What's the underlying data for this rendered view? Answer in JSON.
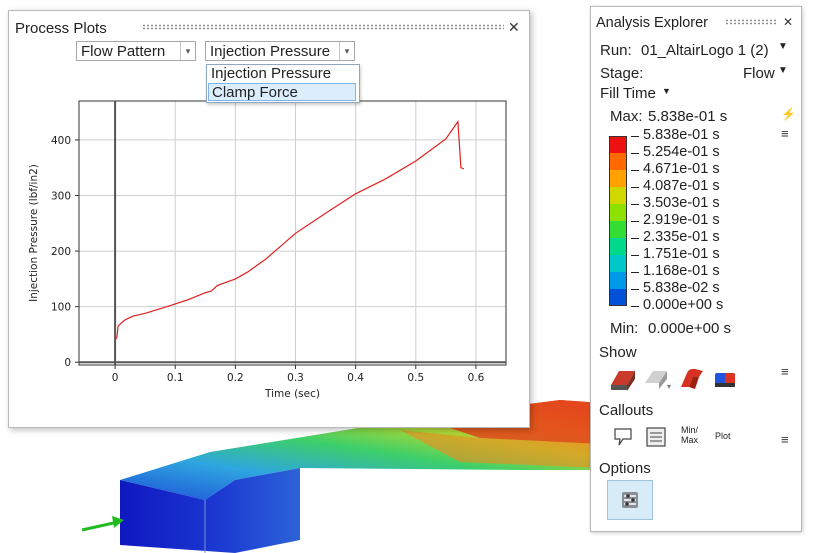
{
  "process_plots": {
    "title": "Process Plots",
    "combo1": "Flow Pattern",
    "combo2": "Injection Pressure",
    "dropdown_options": [
      "Injection Pressure",
      "Clamp Force"
    ],
    "dropdown_selected": "Clamp Force",
    "close_icon": "close-icon"
  },
  "chart_data": {
    "type": "line",
    "xlabel": "Time (sec)",
    "ylabel": "Injection Pressure (lbf/in2)",
    "xlim": [
      -0.06,
      0.65
    ],
    "ylim": [
      -5,
      470
    ],
    "xticks": [
      "0",
      "0.1",
      "0.2",
      "0.3",
      "0.4",
      "0.5",
      "0.6"
    ],
    "yticks": [
      "0",
      "100",
      "200",
      "300",
      "400"
    ],
    "grid": true,
    "series": [
      {
        "color": "#e02020",
        "x": [
          0.0,
          0.003,
          0.005,
          0.01,
          0.015,
          0.02,
          0.03,
          0.05,
          0.08,
          0.1,
          0.12,
          0.15,
          0.16,
          0.17,
          0.2,
          0.22,
          0.25,
          0.3,
          0.35,
          0.4,
          0.45,
          0.5,
          0.55,
          0.57,
          0.575,
          0.58
        ],
        "y": [
          40,
          45,
          65,
          70,
          75,
          78,
          83,
          88,
          98,
          105,
          112,
          125,
          128,
          138,
          150,
          162,
          185,
          232,
          268,
          303,
          330,
          362,
          402,
          433,
          350,
          348
        ]
      }
    ]
  },
  "analysis_explorer": {
    "title": "Analysis Explorer",
    "run_label": "Run:",
    "run_value": "01_AltairLogo 1 (2)",
    "stage_label": "Stage:",
    "stage_value": "Flow",
    "result_type": "Fill Time",
    "max_label": "Max:",
    "max_value": "5.838e-01 s",
    "min_label": "Min:",
    "min_value": "0.000e+00 s",
    "legend_labels": [
      "5.838e-01 s",
      "5.254e-01 s",
      "4.671e-01 s",
      "4.087e-01 s",
      "3.503e-01 s",
      "2.919e-01 s",
      "2.335e-01 s",
      "1.751e-01 s",
      "1.168e-01 s",
      "5.838e-02 s",
      "0.000e+00 s"
    ],
    "legend_colors": [
      "#ee1111",
      "#ff6a00",
      "#ffa200",
      "#d0d800",
      "#8ee000",
      "#33dd33",
      "#00d98c",
      "#00c8c8",
      "#0098e8",
      "#0050d8",
      "#0000cc"
    ],
    "show_label": "Show",
    "callouts_label": "Callouts",
    "callout_minmax": "Min/\nMax",
    "callout_plot": "Plot",
    "options_label": "Options"
  }
}
